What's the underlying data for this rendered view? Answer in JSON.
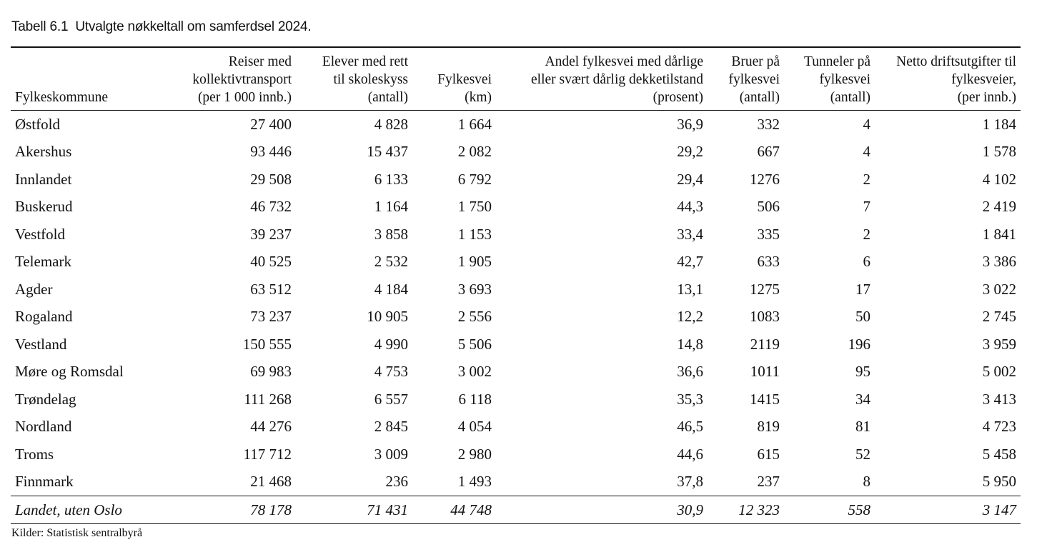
{
  "caption": {
    "number": "Tabell 6.1",
    "title": "Utvalgte nøkkeltall om samferdsel 2024."
  },
  "headers": [
    "Fylkeskommune",
    "Reiser med\nkollektivtransport\n(per 1 000 innb.)",
    "Elever med rett\ntil skoleskyss\n(antall)",
    "Fylkesvei\n(km)",
    "Andel fylkesvei med dårlige\neller svært dårlig dekketilstand\n(prosent)",
    "Bruer på\nfylkesvei\n(antall)",
    "Tunneler på\nfylkesvei\n(antall)",
    "Netto driftsutgifter til\nfylkesveier,\n(per innb.)"
  ],
  "rows": [
    [
      "Østfold",
      "27 400",
      "4 828",
      "1 664",
      "36,9",
      "332",
      "4",
      "1 184"
    ],
    [
      "Akershus",
      "93 446",
      "15 437",
      "2 082",
      "29,2",
      "667",
      "4",
      "1 578"
    ],
    [
      "Innlandet",
      "29 508",
      "6 133",
      "6 792",
      "29,4",
      "1276",
      "2",
      "4 102"
    ],
    [
      "Buskerud",
      "46 732",
      "1 164",
      "1 750",
      "44,3",
      "506",
      "7",
      "2 419"
    ],
    [
      "Vestfold",
      "39 237",
      "3 858",
      "1 153",
      "33,4",
      "335",
      "2",
      "1 841"
    ],
    [
      "Telemark",
      "40 525",
      "2 532",
      "1 905",
      "42,7",
      "633",
      "6",
      "3 386"
    ],
    [
      "Agder",
      "63 512",
      "4 184",
      "3 693",
      "13,1",
      "1275",
      "17",
      "3 022"
    ],
    [
      "Rogaland",
      "73 237",
      "10 905",
      "2 556",
      "12,2",
      "1083",
      "50",
      "2 745"
    ],
    [
      "Vestland",
      "150 555",
      "4 990",
      "5 506",
      "14,8",
      "2119",
      "196",
      "3 959"
    ],
    [
      "Møre og Romsdal",
      "69 983",
      "4 753",
      "3 002",
      "36,6",
      "1011",
      "95",
      "5 002"
    ],
    [
      "Trøndelag",
      "111 268",
      "6 557",
      "6 118",
      "35,3",
      "1415",
      "34",
      "3 413"
    ],
    [
      "Nordland",
      "44 276",
      "2 845",
      "4 054",
      "46,5",
      "819",
      "81",
      "4 723"
    ],
    [
      "Troms",
      "117 712",
      "3 009",
      "2 980",
      "44,6",
      "615",
      "52",
      "5 458"
    ],
    [
      "Finnmark",
      "21 468",
      "236",
      "1 493",
      "37,8",
      "237",
      "8",
      "5 950"
    ]
  ],
  "total": [
    "Landet, uten Oslo",
    "78 178",
    "71 431",
    "44 748",
    "30,9",
    "12 323",
    "558",
    "3 147"
  ],
  "source": "Kilder: Statistisk sentralbyrå"
}
